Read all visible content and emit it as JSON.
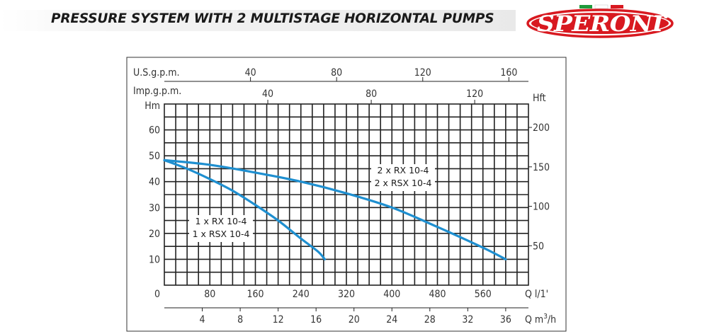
{
  "header": {
    "title": "PRESSURE SYSTEM WITH 2 MULTISTAGE HORIZONTAL PUMPS",
    "logo_text": "SPERONI",
    "logo_color": "#d81920",
    "flag_colors": [
      "#1f9a3c",
      "#ffffff",
      "#d81920"
    ]
  },
  "chart_data": {
    "type": "line",
    "title": "",
    "xlabel": "Q l/1'",
    "ylabel": "Hm",
    "xlim": [
      0,
      640
    ],
    "ylim": [
      0,
      70
    ],
    "grid": true,
    "line_color": "#1e8fd0",
    "x_ticks": [
      0,
      80,
      160,
      240,
      320,
      400,
      480,
      560
    ],
    "x_tick_labels": [
      "0",
      "80",
      "160",
      "240",
      "320",
      "400",
      "480",
      "560"
    ],
    "x_unit_label": "Q l/1'",
    "y_ticks": [
      10,
      20,
      30,
      40,
      50,
      60
    ],
    "y_tick_labels": [
      "10",
      "20",
      "30",
      "40",
      "50",
      "60"
    ],
    "y_unit_label": "Hm",
    "secondary_axes": {
      "top_usgpm": {
        "label": "U.S.g.p.m.",
        "ticks": [
          40,
          80,
          120,
          160
        ],
        "factor_lpm_per_unit": 3.785
      },
      "top_impgpm": {
        "label": "Imp.g.p.m.",
        "ticks": [
          40,
          80,
          120
        ],
        "factor_lpm_per_unit": 4.546
      },
      "right_hft": {
        "label": "Hft",
        "ticks": [
          50,
          100,
          150,
          200
        ],
        "factor_m_per_unit": 0.3048
      },
      "bottom_m3h": {
        "label_prefix": "Q m",
        "label_sup": "3",
        "label_suffix": "/h",
        "ticks": [
          4,
          8,
          12,
          16,
          20,
          24,
          28,
          32,
          36
        ],
        "factor_lpm_per_unit": 16.667
      }
    },
    "series": [
      {
        "name": "1 x RX 10-4 / 1 x RSX 10-4",
        "label_lines": [
          "1 x RX 10-4",
          "1 x RSX 10-4"
        ],
        "x": [
          0,
          40,
          80,
          120,
          160,
          200,
          240,
          270,
          282
        ],
        "y": [
          48.3,
          45,
          41,
          36.5,
          31,
          25,
          18,
          13,
          10
        ]
      },
      {
        "name": "2 x RX 10-4 / 2 x RSX 10-4",
        "label_lines": [
          "2 x RX 10-4",
          "2 x RSX 10-4"
        ],
        "x": [
          0,
          80,
          160,
          240,
          320,
          400,
          480,
          560,
          600
        ],
        "y": [
          48.3,
          46.5,
          43.5,
          40,
          35.5,
          30,
          22.5,
          14.5,
          10
        ]
      }
    ]
  }
}
